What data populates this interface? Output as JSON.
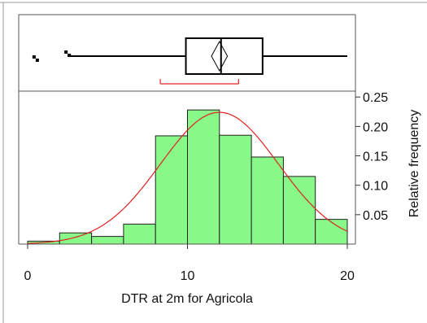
{
  "chart_data": {
    "type": "bar",
    "xlabel": "DTR at 2m for Agricola",
    "ylabel": "Relative frequency",
    "xlim": [
      0,
      20
    ],
    "ylim": [
      0,
      0.26
    ],
    "x_ticks": [
      0,
      10,
      20
    ],
    "y_ticks": [
      0.05,
      0.1,
      0.15,
      0.2,
      0.25
    ],
    "y_tick_labels": [
      "0.05",
      "0.10",
      "0.15",
      "0.20",
      "0.25"
    ],
    "bins": [
      {
        "x0": 0,
        "x1": 2,
        "value": 0.005
      },
      {
        "x0": 2,
        "x1": 4,
        "value": 0.019
      },
      {
        "x0": 4,
        "x1": 6,
        "value": 0.013
      },
      {
        "x0": 6,
        "x1": 8,
        "value": 0.034
      },
      {
        "x0": 8,
        "x1": 10,
        "value": 0.184
      },
      {
        "x0": 10,
        "x1": 12,
        "value": 0.228
      },
      {
        "x0": 12,
        "x1": 14,
        "value": 0.185
      },
      {
        "x0": 14,
        "x1": 16,
        "value": 0.148
      },
      {
        "x0": 16,
        "x1": 18,
        "value": 0.115
      },
      {
        "x0": 18,
        "x1": 20,
        "value": 0.042
      }
    ],
    "normal_curve": {
      "mean": 12.0,
      "sd": 3.7,
      "peak": 0.224
    },
    "boxplot": {
      "outliers": [
        0.4,
        2.4
      ],
      "whisker_low": 2.5,
      "q1": 9.9,
      "median": 12.1,
      "mean": 12.0,
      "mean_diamond_halfwidth": 0.5,
      "q3": 14.7,
      "whisker_high": 20.0,
      "shortest_half": [
        8.3,
        13.2
      ]
    },
    "colors": {
      "bar_fill": "#88f888",
      "bar_stroke": "#222222",
      "curve": "#dd2222",
      "bracket": "#dd2222",
      "frame": "#555555"
    }
  }
}
